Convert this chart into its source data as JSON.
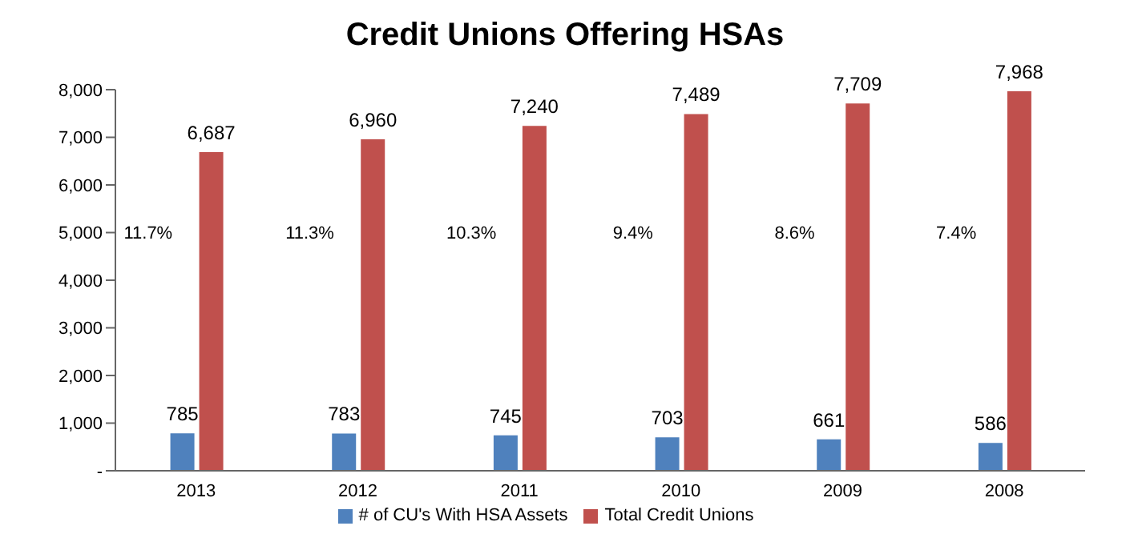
{
  "chart_data": {
    "type": "bar",
    "title": "Credit Unions Offering HSAs",
    "categories": [
      "2013",
      "2012",
      "2011",
      "2010",
      "2009",
      "2008"
    ],
    "series": [
      {
        "name": "# of CU's With HSA Assets",
        "color": "#4f81bd",
        "values": [
          785,
          783,
          745,
          703,
          661,
          586
        ],
        "value_labels": [
          "785",
          "783",
          "745",
          "703",
          "661",
          "586"
        ]
      },
      {
        "name": "Total Credit Unions",
        "color": "#c0504d",
        "values": [
          6687,
          6960,
          7240,
          7489,
          7709,
          7968
        ],
        "value_labels": [
          "6,687",
          "6,960",
          "7,240",
          "7,489",
          "7,709",
          "7,968"
        ]
      }
    ],
    "ylim": [
      0,
      8000
    ],
    "yticks": [
      {
        "value": 0,
        "label": "-"
      },
      {
        "value": 1000,
        "label": "1,000"
      },
      {
        "value": 2000,
        "label": "2,000"
      },
      {
        "value": 3000,
        "label": "3,000"
      },
      {
        "value": 4000,
        "label": "4,000"
      },
      {
        "value": 5000,
        "label": "5,000"
      },
      {
        "value": 6000,
        "label": "6,000"
      },
      {
        "value": 7000,
        "label": "7,000"
      },
      {
        "value": 8000,
        "label": "8,000"
      }
    ],
    "grid": false,
    "legend": "bottom",
    "annotations": [
      {
        "text": "11.7%",
        "x": "2013",
        "y": 5000
      },
      {
        "text": "11.3%",
        "x": "2012",
        "y": 5000
      },
      {
        "text": "10.3%",
        "x": "2011",
        "y": 5000
      },
      {
        "text": "9.4%",
        "x": "2010",
        "y": 5000
      },
      {
        "text": "8.6%",
        "x": "2009",
        "y": 5000
      },
      {
        "text": "7.4%",
        "x": "2008",
        "y": 5000
      }
    ]
  }
}
